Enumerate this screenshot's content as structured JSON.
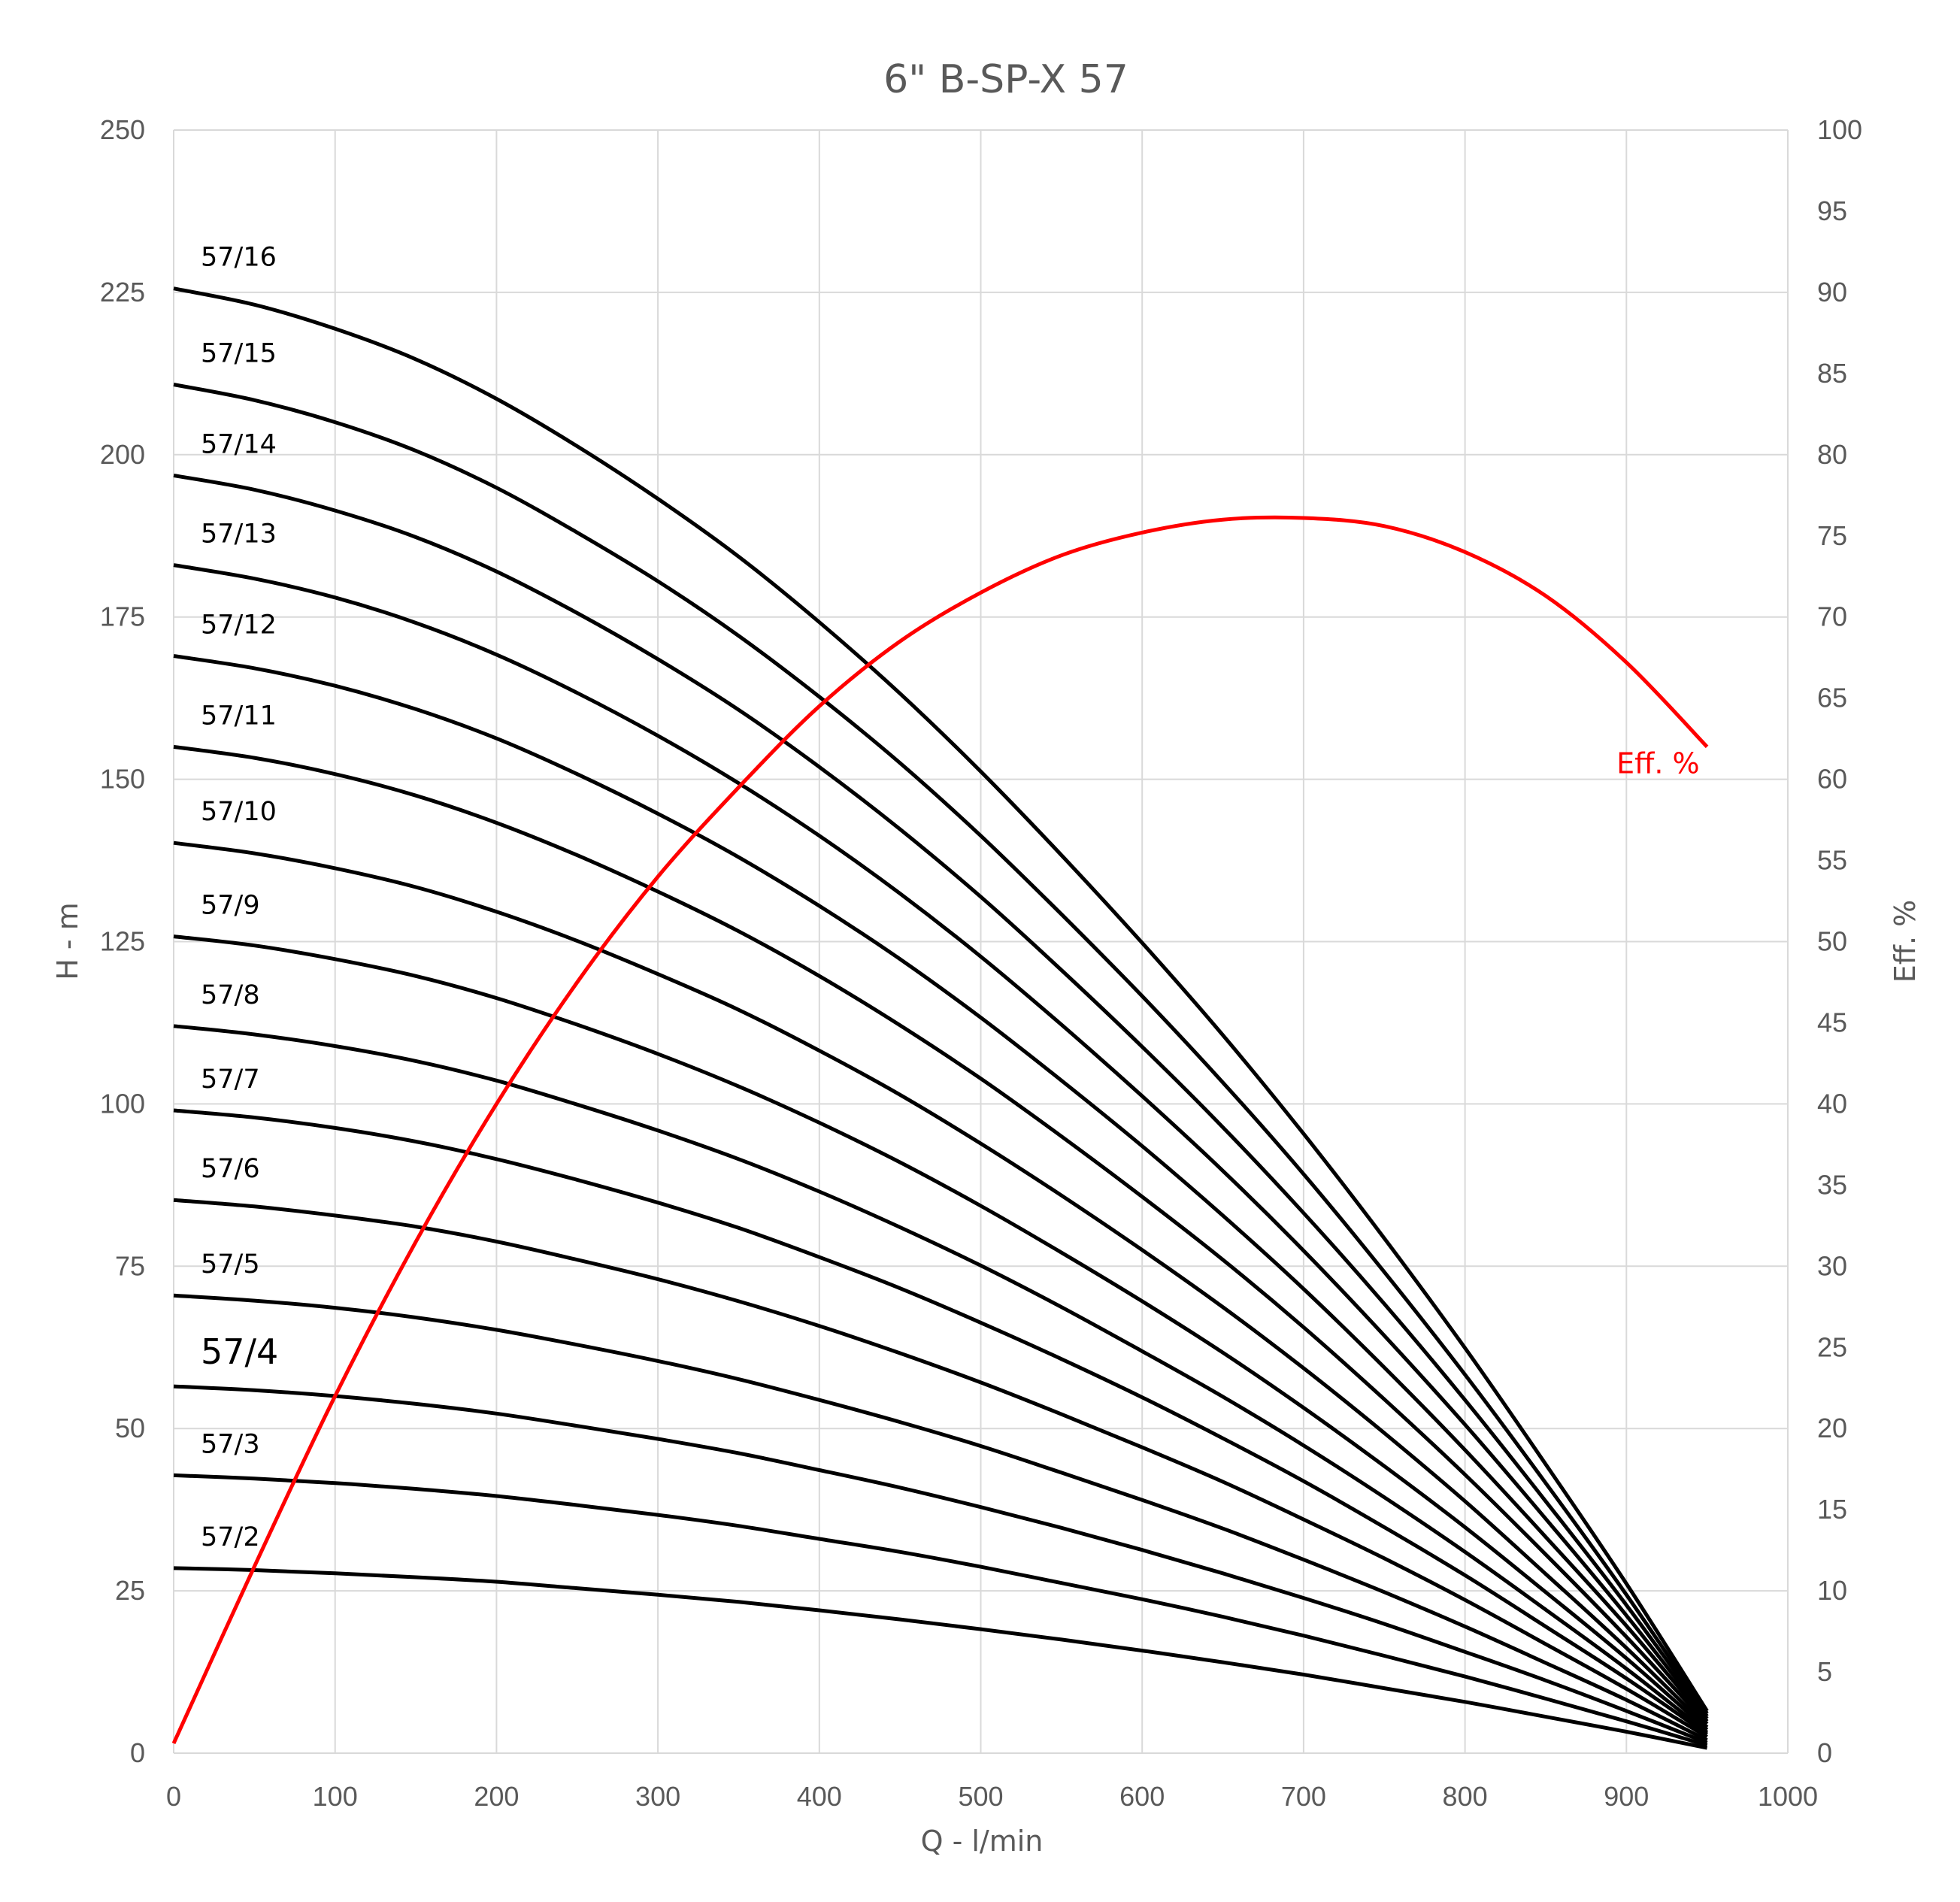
{
  "chart_data": {
    "type": "line",
    "title": "6\" B-SP-X 57",
    "xlabel": "Q - l/min",
    "ylabel": "H - m",
    "y2label": "Eff. %",
    "xlim": [
      0,
      1000
    ],
    "ylim": [
      0,
      250
    ],
    "y2lim": [
      0,
      100
    ],
    "x_ticks": [
      "0",
      "100",
      "200",
      "300",
      "400",
      "500",
      "600",
      "700",
      "800",
      "900",
      "1000"
    ],
    "y_ticks": [
      "0",
      "25",
      "50",
      "75",
      "100",
      "125",
      "150",
      "175",
      "200",
      "225",
      "250"
    ],
    "y2_ticks": [
      "0",
      "5",
      "10",
      "15",
      "20",
      "25",
      "30",
      "35",
      "40",
      "45",
      "50",
      "55",
      "60",
      "65",
      "70",
      "75",
      "80",
      "85",
      "90",
      "95",
      "100"
    ],
    "grid": true,
    "x": [
      0,
      50,
      100,
      150,
      200,
      250,
      300,
      350,
      400,
      450,
      500,
      550,
      600,
      650,
      700,
      750,
      800,
      850,
      900,
      950
    ],
    "series": [
      {
        "name": "57/16",
        "axis": "left",
        "color": "#000000",
        "values": [
          225.6,
          223.1,
          219.4,
          214.7,
          208.6,
          201.3,
          193.2,
          184.3,
          174.2,
          163.2,
          151.2,
          138.3,
          124.8,
          110.6,
          95.4,
          79.3,
          62.4,
          44.5,
          26.1,
          6.5
        ]
      },
      {
        "name": "57/15",
        "axis": "left",
        "color": "#000000",
        "values": [
          210.8,
          208.4,
          205.0,
          200.6,
          194.9,
          188.0,
          180.5,
          172.1,
          162.7,
          152.5,
          141.3,
          129.2,
          116.6,
          103.3,
          89.2,
          74.1,
          58.3,
          41.6,
          24.4,
          6.1
        ]
      },
      {
        "name": "57/14",
        "axis": "left",
        "color": "#000000",
        "values": [
          196.8,
          194.6,
          191.4,
          187.3,
          182.0,
          175.6,
          168.5,
          160.7,
          151.9,
          142.3,
          131.9,
          120.6,
          108.8,
          96.4,
          83.2,
          69.2,
          54.4,
          38.8,
          22.8,
          5.7
        ]
      },
      {
        "name": "57/13",
        "axis": "left",
        "color": "#000000",
        "values": [
          183.0,
          180.9,
          178.0,
          174.1,
          169.2,
          163.3,
          156.7,
          149.4,
          141.3,
          132.4,
          122.7,
          112.2,
          101.2,
          89.7,
          77.4,
          64.3,
          50.6,
          36.1,
          21.2,
          5.3
        ]
      },
      {
        "name": "57/12",
        "axis": "left",
        "color": "#000000",
        "values": [
          169.0,
          167.1,
          164.4,
          160.8,
          156.3,
          150.8,
          144.7,
          138.0,
          130.5,
          122.3,
          113.3,
          103.6,
          93.5,
          82.8,
          71.5,
          59.4,
          46.7,
          33.3,
          19.6,
          4.9
        ]
      },
      {
        "name": "57/11",
        "axis": "left",
        "color": "#000000",
        "values": [
          155.0,
          153.3,
          150.8,
          147.5,
          143.3,
          138.3,
          132.7,
          126.6,
          119.7,
          112.1,
          103.9,
          95.0,
          85.7,
          76.0,
          65.6,
          54.5,
          42.9,
          30.6,
          17.9,
          4.5
        ]
      },
      {
        "name": "57/10",
        "axis": "left",
        "color": "#000000",
        "values": [
          140.2,
          138.6,
          136.3,
          133.4,
          129.6,
          125.1,
          120.0,
          114.5,
          108.2,
          101.4,
          93.9,
          85.9,
          77.5,
          68.7,
          59.3,
          49.3,
          38.8,
          27.6,
          16.2,
          4.0
        ]
      },
      {
        "name": "57/9",
        "axis": "left",
        "color": "#000000",
        "values": [
          125.8,
          124.4,
          122.3,
          119.7,
          116.3,
          112.2,
          107.7,
          102.7,
          97.1,
          91.0,
          84.3,
          77.1,
          69.6,
          61.7,
          53.2,
          44.2,
          34.8,
          24.8,
          14.6,
          3.6
        ]
      },
      {
        "name": "57/8",
        "axis": "left",
        "color": "#000000",
        "values": [
          112.0,
          110.7,
          108.9,
          106.6,
          103.6,
          99.9,
          95.9,
          91.5,
          86.5,
          81.0,
          75.1,
          68.7,
          61.9,
          54.9,
          47.4,
          39.4,
          31.0,
          22.1,
          13.0,
          3.2
        ]
      },
      {
        "name": "57/7",
        "axis": "left",
        "color": "#000000",
        "values": [
          99.0,
          97.9,
          96.3,
          94.2,
          91.5,
          88.3,
          84.8,
          80.9,
          76.4,
          71.6,
          66.3,
          60.7,
          54.8,
          48.5,
          41.9,
          34.8,
          27.4,
          19.5,
          11.5,
          2.9
        ]
      },
      {
        "name": "57/6",
        "axis": "left",
        "color": "#000000",
        "values": [
          85.2,
          84.2,
          82.8,
          81.1,
          78.8,
          76.0,
          73.0,
          69.6,
          65.8,
          61.6,
          57.1,
          52.2,
          47.1,
          41.8,
          36.0,
          30.0,
          23.6,
          16.8,
          9.9,
          2.5
        ]
      },
      {
        "name": "57/5",
        "axis": "left",
        "color": "#000000",
        "values": [
          70.5,
          69.7,
          68.6,
          67.1,
          65.2,
          62.9,
          60.4,
          57.6,
          54.4,
          51.0,
          47.3,
          43.2,
          39.0,
          34.6,
          29.8,
          24.8,
          19.5,
          13.9,
          8.2,
          2.0
        ]
      },
      {
        "name": "57/4",
        "axis": "left",
        "color": "#000000",
        "values": [
          56.5,
          55.9,
          55.0,
          53.8,
          52.3,
          50.4,
          48.4,
          46.2,
          43.6,
          40.9,
          37.9,
          34.7,
          31.3,
          27.7,
          23.9,
          19.9,
          15.6,
          11.2,
          6.5,
          1.6
        ]
      },
      {
        "name": "57/3",
        "axis": "left",
        "color": "#000000",
        "values": [
          42.8,
          42.3,
          41.6,
          40.7,
          39.6,
          38.2,
          36.7,
          35.0,
          33.0,
          31.0,
          28.7,
          26.2,
          23.7,
          21.0,
          18.1,
          15.0,
          11.8,
          8.4,
          4.9,
          1.2
        ]
      },
      {
        "name": "57/2",
        "axis": "left",
        "color": "#000000",
        "values": [
          28.5,
          28.2,
          27.7,
          27.1,
          26.4,
          25.4,
          24.4,
          23.3,
          22.0,
          20.6,
          19.1,
          17.5,
          15.8,
          14.0,
          12.1,
          10.0,
          7.9,
          5.6,
          3.3,
          0.8
        ]
      },
      {
        "name": "Eff. %",
        "axis": "right",
        "color": "#ff0000",
        "values": [
          0.6,
          11.5,
          22.0,
          31.5,
          40.0,
          47.5,
          54.0,
          59.5,
          64.5,
          68.5,
          71.5,
          73.8,
          75.2,
          76.0,
          76.1,
          75.6,
          74.0,
          71.3,
          67.2,
          62.0
        ]
      }
    ]
  }
}
